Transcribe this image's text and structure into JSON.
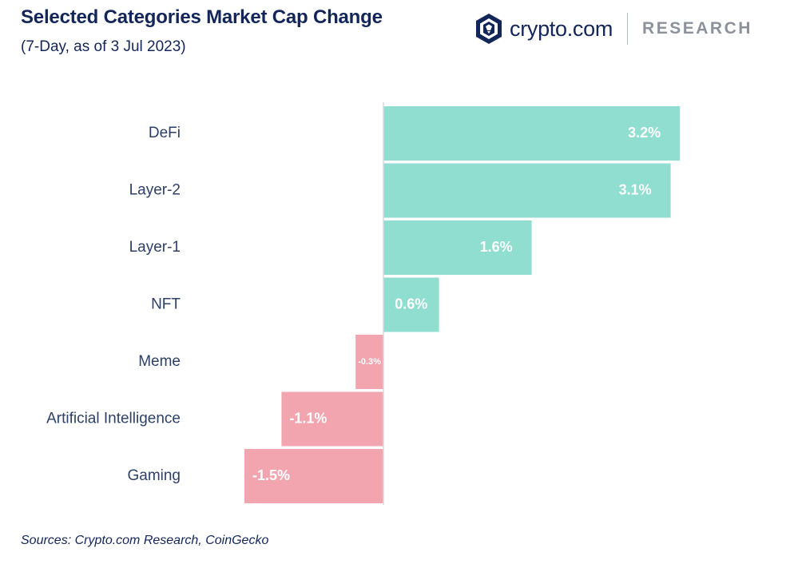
{
  "header": {
    "title": "Selected Categories Market Cap Change",
    "subtitle": "(7-Day, as of 3 Jul 2023)"
  },
  "brand": {
    "name": "crypto.com",
    "tag": "RESEARCH",
    "logo_icon": "crypto-com-lion-shield-icon"
  },
  "footer": {
    "source": "Sources: Crypto.com Research, CoinGecko"
  },
  "colors": {
    "positive": "#8fded0",
    "negative": "#f2a5ae",
    "text": "#13265a"
  },
  "chart_data": {
    "type": "bar",
    "orientation": "horizontal",
    "categories": [
      "DeFi",
      "Layer-2",
      "Layer-1",
      "NFT",
      "Meme",
      "Artificial Intelligence",
      "Gaming"
    ],
    "values": [
      3.2,
      3.1,
      1.6,
      0.6,
      -0.3,
      -1.1,
      -1.5
    ],
    "value_labels": [
      "3.2%",
      "3.1%",
      "1.6%",
      "0.6%",
      "-0.3%",
      "-1.1%",
      "-1.5%"
    ],
    "xlim": [
      -1.5,
      3.2
    ],
    "grid": false,
    "legend": "none"
  }
}
